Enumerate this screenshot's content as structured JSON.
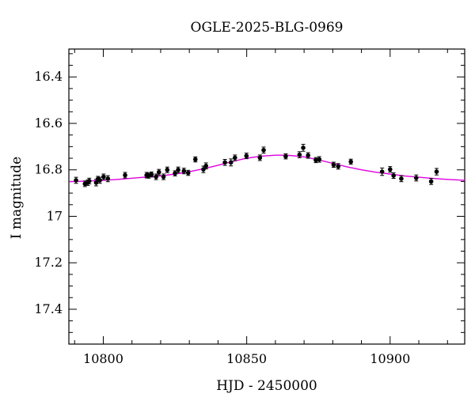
{
  "chart_data": {
    "type": "scatter",
    "title": "OGLE-2025-BLG-0969",
    "xlabel": "HJD - 2450000",
    "ylabel": "I magnitude",
    "xlim": [
      10788,
      10926
    ],
    "ylim": [
      17.55,
      16.28
    ],
    "y_inverted": true,
    "grid": false,
    "x_ticks": [
      10800,
      10850,
      10900
    ],
    "y_ticks": [
      16.4,
      16.6,
      16.8,
      17,
      17.2,
      17.4
    ],
    "y_tick_labels": [
      "16.4",
      "16.6",
      "16.8",
      "17",
      "17.2",
      "17.4"
    ],
    "colors": {
      "points": "#000000",
      "model": "#e000e0",
      "frame": "#000000"
    },
    "series": [
      {
        "kind": "points",
        "x": [
          10790.5,
          10793.6,
          10794.6,
          10795.1,
          10797.5,
          10798.1,
          10798.8,
          10800.1,
          10801.6,
          10807.6,
          10815.1,
          10815.8,
          10816.8,
          10818.4,
          10819.4,
          10821.0,
          10822.3,
          10825.0,
          10826.1,
          10828.1,
          10829.6,
          10832.1,
          10834.9,
          10835.8,
          10842.4,
          10844.5,
          10845.9,
          10849.9,
          10854.6,
          10855.9,
          10863.6,
          10868.4,
          10869.7,
          10871.4,
          10874.1,
          10875.3,
          10880.3,
          10881.9,
          10886.3,
          10897.2,
          10900.0,
          10901.2,
          10903.9,
          10909.1,
          10914.3,
          10916.2
        ],
        "y": [
          16.845,
          16.86,
          16.855,
          16.848,
          16.855,
          16.84,
          16.845,
          16.83,
          16.838,
          16.823,
          16.823,
          16.825,
          16.82,
          16.83,
          16.81,
          16.83,
          16.8,
          16.815,
          16.8,
          16.805,
          16.813,
          16.755,
          16.798,
          16.783,
          16.768,
          16.768,
          16.748,
          16.74,
          16.748,
          16.715,
          16.742,
          16.735,
          16.705,
          16.738,
          16.758,
          16.755,
          16.778,
          16.785,
          16.765,
          16.808,
          16.798,
          16.825,
          16.838,
          16.835,
          16.85,
          16.808
        ],
        "err": [
          0.013,
          0.012,
          0.012,
          0.012,
          0.014,
          0.012,
          0.013,
          0.012,
          0.013,
          0.012,
          0.012,
          0.011,
          0.011,
          0.012,
          0.012,
          0.012,
          0.012,
          0.011,
          0.012,
          0.012,
          0.011,
          0.011,
          0.014,
          0.013,
          0.013,
          0.015,
          0.012,
          0.012,
          0.012,
          0.013,
          0.011,
          0.013,
          0.015,
          0.012,
          0.011,
          0.012,
          0.011,
          0.012,
          0.011,
          0.016,
          0.012,
          0.012,
          0.013,
          0.013,
          0.013,
          0.014
        ]
      },
      {
        "kind": "model",
        "x": [
          10788,
          10795,
          10800,
          10805,
          10810,
          10815,
          10820,
          10825,
          10830,
          10835,
          10840,
          10845,
          10850,
          10855,
          10860,
          10862,
          10865,
          10870,
          10875,
          10880,
          10885,
          10890,
          10895,
          10900,
          10905,
          10910,
          10915,
          10920,
          10926
        ],
        "y": [
          16.851,
          16.848,
          16.845,
          16.841,
          16.836,
          16.831,
          16.826,
          16.818,
          16.808,
          16.795,
          16.78,
          16.764,
          16.75,
          16.741,
          16.737,
          16.737,
          16.738,
          16.744,
          16.757,
          16.772,
          16.787,
          16.8,
          16.81,
          16.818,
          16.826,
          16.832,
          16.837,
          16.841,
          16.845
        ]
      }
    ]
  }
}
